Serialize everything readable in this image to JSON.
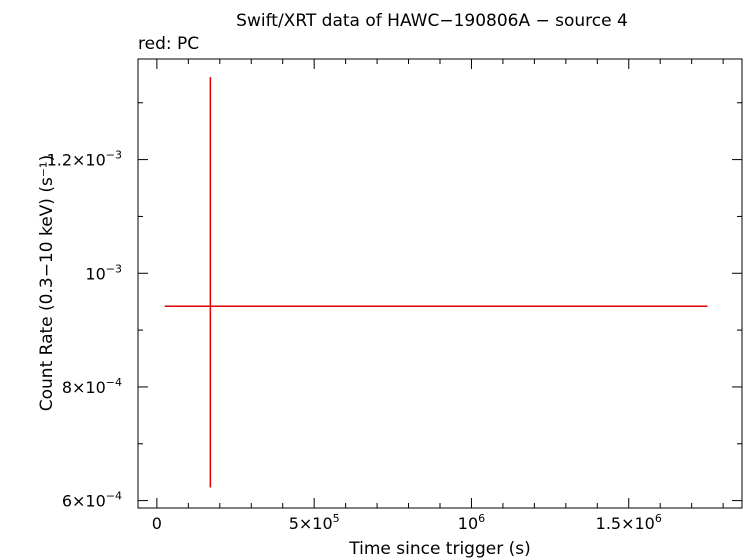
{
  "chart_data": {
    "type": "scatter",
    "title": "Swift/XRT data of HAWC−190806A − source 4",
    "subtitle": "red: PC",
    "xlabel": "Time since trigger (s)",
    "ylabel": "Count Rate (0.3−10 keV) (s⁻¹)",
    "xlim": [
      -60000,
      1860000
    ],
    "ylim": [
      0.000587,
      0.001377
    ],
    "x_ticks": [
      {
        "value": 0,
        "base": "0",
        "exp": ""
      },
      {
        "value": 500000,
        "base": "5×10",
        "exp": "5"
      },
      {
        "value": 1000000,
        "base": "10",
        "exp": "6"
      },
      {
        "value": 1500000,
        "base": "1.5×10",
        "exp": "6"
      }
    ],
    "y_ticks": [
      {
        "value": 0.0006,
        "base": "6×10",
        "exp": "−4"
      },
      {
        "value": 0.0008,
        "base": "8×10",
        "exp": "−4"
      },
      {
        "value": 0.001,
        "base": "10",
        "exp": "−3"
      },
      {
        "value": 0.0012,
        "base": "1.2×10",
        "exp": "−3"
      }
    ],
    "x_minor_step": 100000,
    "y_minor_step": 0.0001,
    "series": [
      {
        "color": "#e00000",
        "points": [
          {
            "x": 170000,
            "y": 0.000942,
            "xerr_low": 145000,
            "xerr_high": 1580000,
            "yerr_low": 0.000319,
            "yerr_high": 0.000403
          }
        ]
      }
    ]
  }
}
